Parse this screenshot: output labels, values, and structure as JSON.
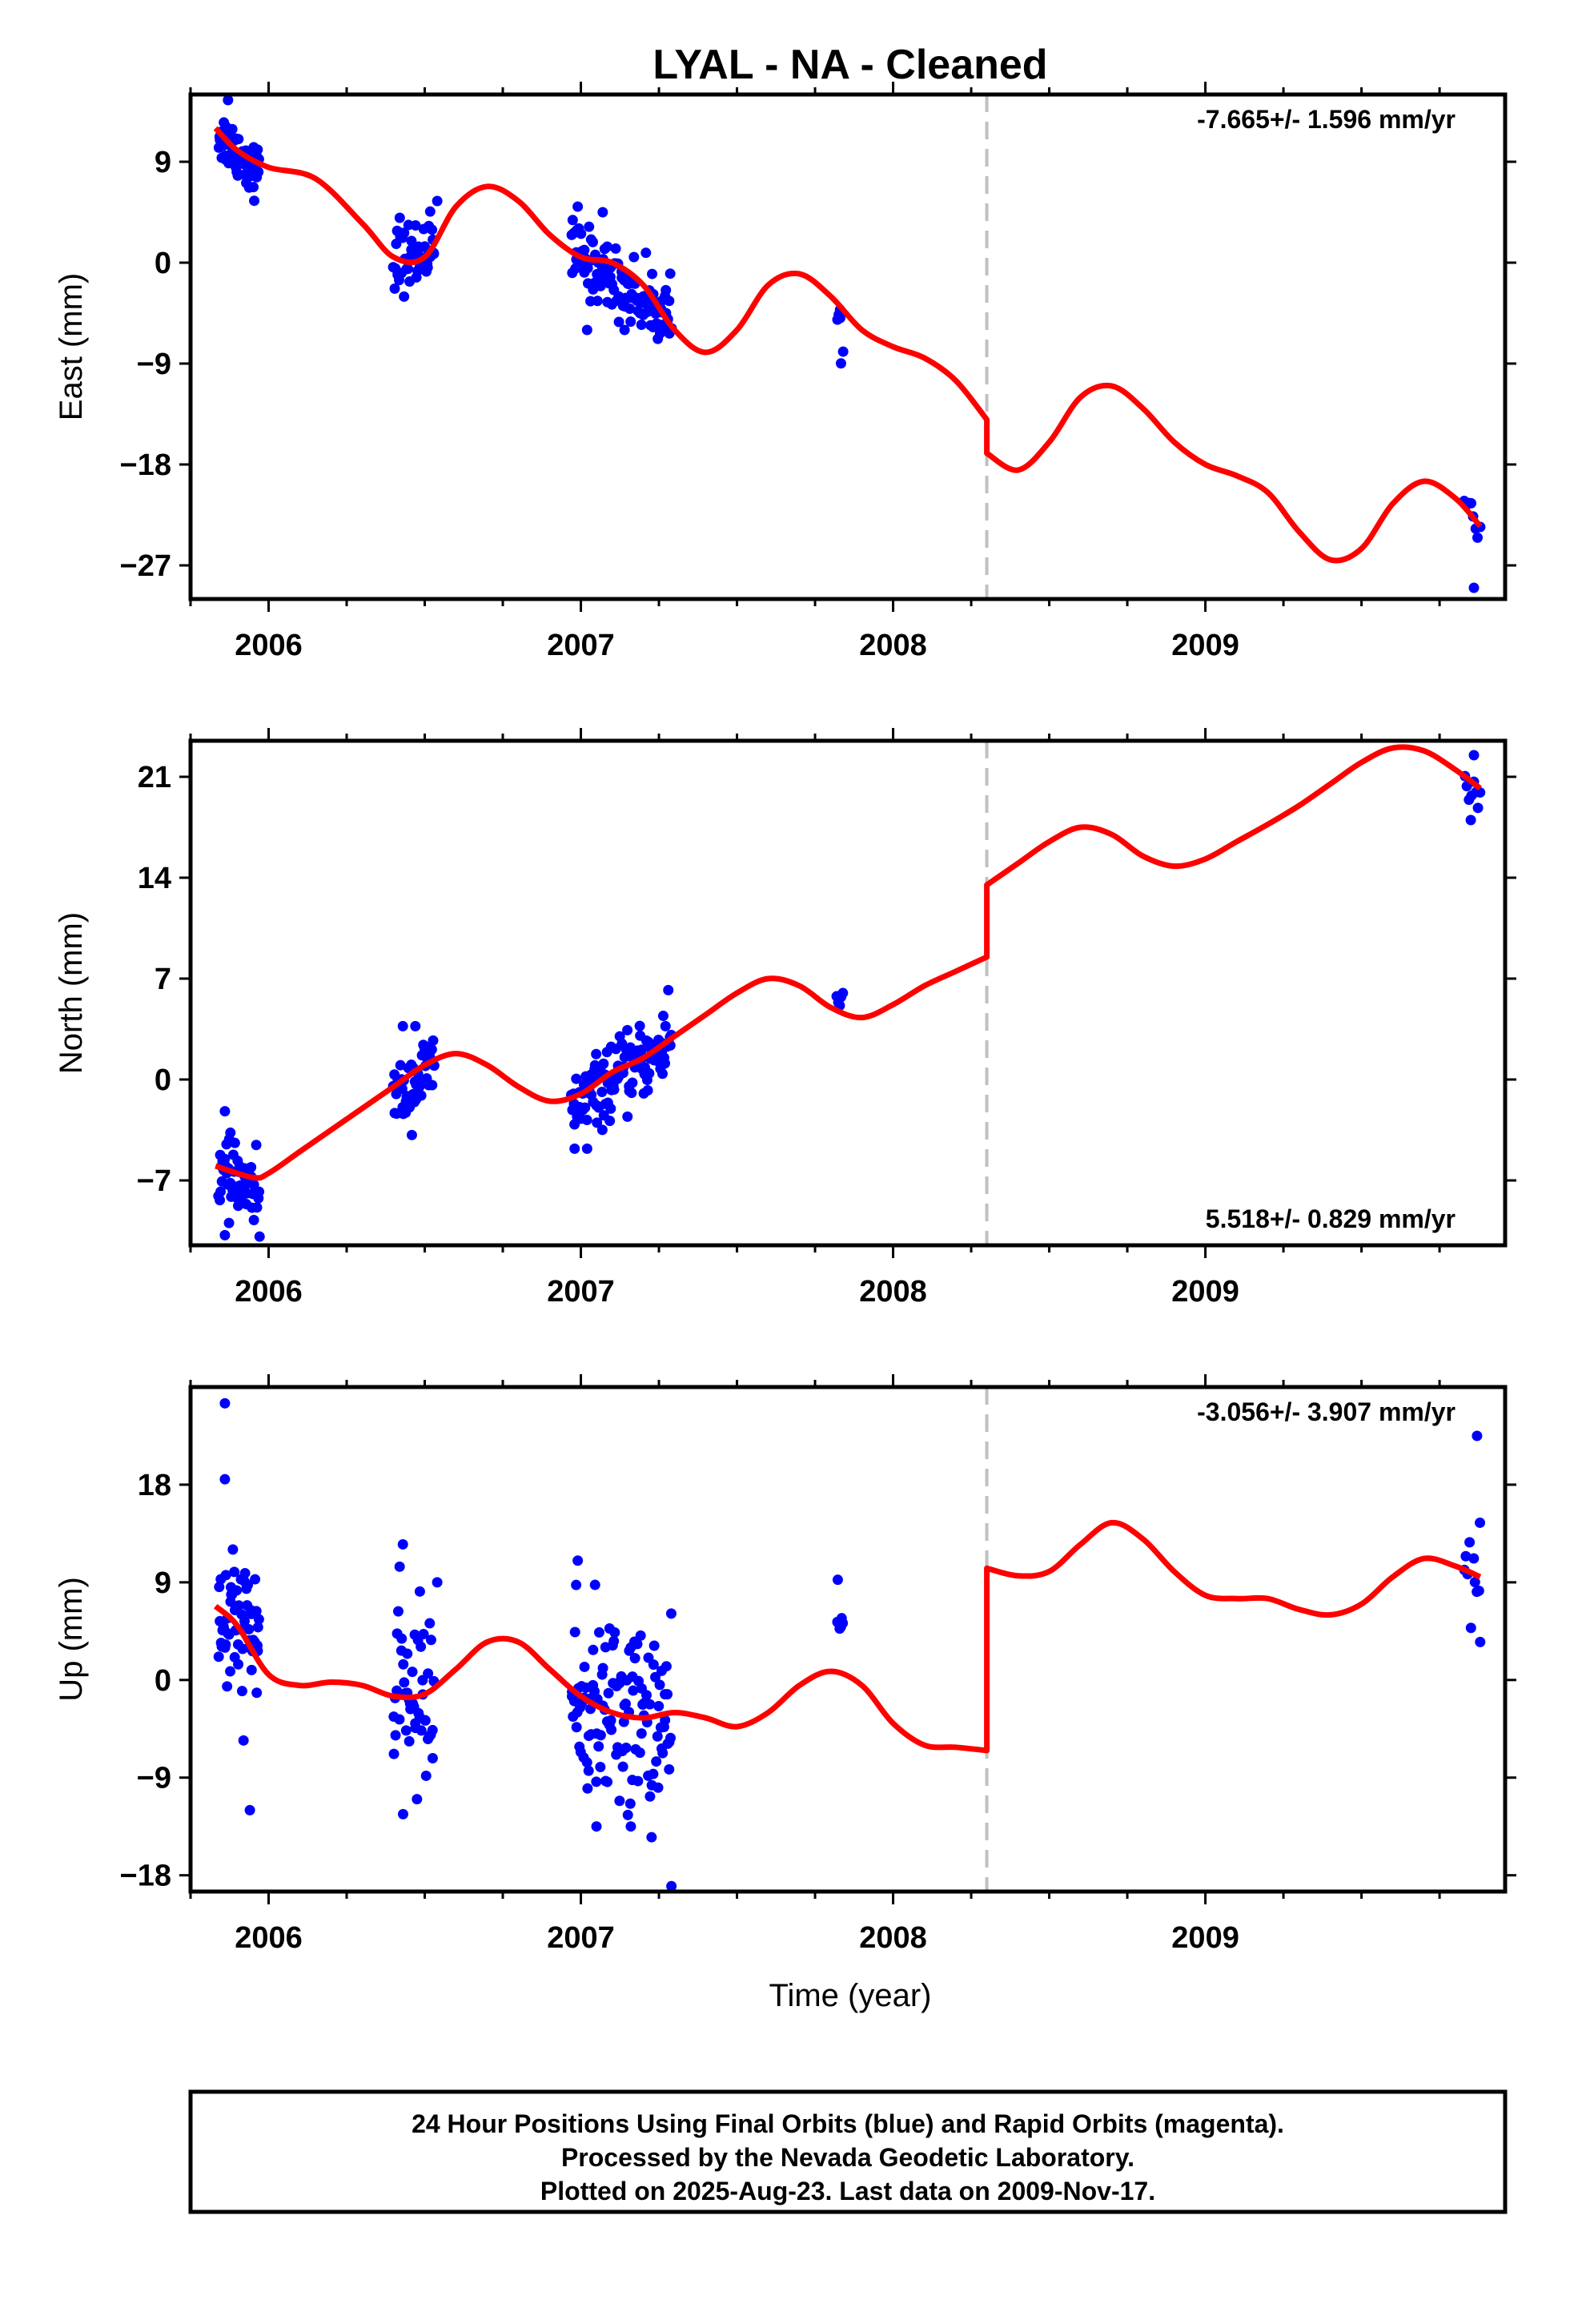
{
  "title": "LYAL  - NA - Cleaned",
  "xlabel": "Time (year)",
  "caption": [
    "24 Hour Positions Using Final Orbits (blue) and Rapid Orbits (magenta).",
    "Processed by the Nevada Geodetic Laboratory.",
    "Plotted on 2025-Aug-23. Last data on 2009-Nov-17."
  ],
  "colors": {
    "data": "#0000ff",
    "model": "#ff0000",
    "break": "#c0c0c0",
    "frame": "#000000"
  },
  "chart_data": [
    {
      "type": "scatter",
      "component": "east",
      "ylabel": "East (mm)",
      "rate_text": "-7.665+/- 1.596 mm/yr",
      "rate_position": "top-right",
      "xlim": [
        2005.75,
        2009.96
      ],
      "ylim": [
        -30,
        15
      ],
      "yticks": [
        9,
        0,
        -9,
        -18,
        -27
      ],
      "ytick_labels": [
        "9",
        "0",
        "−9",
        "−18",
        "−27"
      ],
      "xticks": [
        2006,
        2007,
        2008,
        2009
      ],
      "xtick_labels": [
        "2006",
        "2007",
        "2008",
        "2009"
      ],
      "break_epoch": 2008.3,
      "model": [
        [
          2005.83,
          12
        ],
        [
          2005.9,
          10
        ],
        [
          2006.0,
          8.5
        ],
        [
          2006.15,
          7.5
        ],
        [
          2006.3,
          3.5
        ],
        [
          2006.4,
          0.5
        ],
        [
          2006.5,
          0.5
        ],
        [
          2006.6,
          5
        ],
        [
          2006.7,
          6.8
        ],
        [
          2006.8,
          5.5
        ],
        [
          2006.9,
          2.5
        ],
        [
          2007.0,
          0.5
        ],
        [
          2007.1,
          0
        ],
        [
          2007.2,
          -2
        ],
        [
          2007.3,
          -6
        ],
        [
          2007.4,
          -8
        ],
        [
          2007.5,
          -6
        ],
        [
          2007.6,
          -2
        ],
        [
          2007.7,
          -1
        ],
        [
          2007.8,
          -3
        ],
        [
          2007.9,
          -6
        ],
        [
          2008.0,
          -7.5
        ],
        [
          2008.1,
          -8.5
        ],
        [
          2008.2,
          -10.5
        ],
        [
          2008.3,
          -14
        ],
        [
          2008.3,
          -17
        ],
        [
          2008.4,
          -18.5
        ],
        [
          2008.5,
          -16
        ],
        [
          2008.6,
          -12
        ],
        [
          2008.7,
          -11
        ],
        [
          2008.8,
          -13
        ],
        [
          2008.9,
          -16
        ],
        [
          2009.0,
          -18
        ],
        [
          2009.1,
          -19
        ],
        [
          2009.2,
          -20.5
        ],
        [
          2009.3,
          -24
        ],
        [
          2009.4,
          -26.5
        ],
        [
          2009.5,
          -25.5
        ],
        [
          2009.6,
          -21.5
        ],
        [
          2009.7,
          -19.5
        ],
        [
          2009.8,
          -21
        ],
        [
          2009.88,
          -23.5
        ]
      ],
      "clusters": [
        {
          "x0": 2005.84,
          "x1": 2005.97,
          "y0": 11.5,
          "y1": 8,
          "sd": 1.2,
          "n": 60
        },
        {
          "x0": 2006.4,
          "x1": 2006.53,
          "y0": 0,
          "y1": 1.5,
          "sd": 1.5,
          "n": 50
        },
        {
          "x0": 2006.97,
          "x1": 2007.29,
          "y0": 1,
          "y1": -5,
          "sd": 1.5,
          "n": 120
        },
        {
          "x0": 2007.82,
          "x1": 2007.84,
          "y0": -5.5,
          "y1": -5.5,
          "sd": 1.0,
          "n": 5
        },
        {
          "x0": 2009.83,
          "x1": 2009.88,
          "y0": -22,
          "y1": -23,
          "sd": 1.2,
          "n": 8
        }
      ],
      "outliers": [
        [
          2005.87,
          14.5
        ],
        [
          2006.42,
          4
        ],
        [
          2006.54,
          5.5
        ],
        [
          2006.99,
          5
        ],
        [
          2007.07,
          4.5
        ],
        [
          2007.02,
          -6
        ],
        [
          2007.14,
          -6
        ],
        [
          2007.83,
          -4.2
        ],
        [
          2009.86,
          -29
        ]
      ]
    },
    {
      "type": "scatter",
      "component": "north",
      "ylabel": "North (mm)",
      "rate_text": "5.518+/- 0.829 mm/yr",
      "rate_position": "bottom-right",
      "xlim": [
        2005.75,
        2009.96
      ],
      "ylim": [
        -11.5,
        23.5
      ],
      "yticks": [
        21,
        14,
        7,
        0,
        -7
      ],
      "ytick_labels": [
        "21",
        "14",
        "7",
        "0",
        "−7"
      ],
      "xticks": [
        2006,
        2007,
        2008,
        2009
      ],
      "xtick_labels": [
        "2006",
        "2007",
        "2008",
        "2009"
      ],
      "break_epoch": 2008.3,
      "model": [
        [
          2005.83,
          -6
        ],
        [
          2005.95,
          -6.8
        ],
        [
          2006.0,
          -6.5
        ],
        [
          2006.1,
          -5
        ],
        [
          2006.2,
          -3.5
        ],
        [
          2006.3,
          -2
        ],
        [
          2006.4,
          -0.5
        ],
        [
          2006.5,
          1
        ],
        [
          2006.6,
          1.8
        ],
        [
          2006.7,
          1
        ],
        [
          2006.8,
          -0.5
        ],
        [
          2006.9,
          -1.5
        ],
        [
          2007.0,
          -1
        ],
        [
          2007.1,
          0.5
        ],
        [
          2007.2,
          1.5
        ],
        [
          2007.3,
          3
        ],
        [
          2007.4,
          4.5
        ],
        [
          2007.5,
          6
        ],
        [
          2007.6,
          7
        ],
        [
          2007.7,
          6.5
        ],
        [
          2007.8,
          5
        ],
        [
          2007.9,
          4.3
        ],
        [
          2008.0,
          5.2
        ],
        [
          2008.1,
          6.5
        ],
        [
          2008.2,
          7.5
        ],
        [
          2008.3,
          8.5
        ],
        [
          2008.3,
          13.5
        ],
        [
          2008.4,
          15
        ],
        [
          2008.5,
          16.5
        ],
        [
          2008.6,
          17.5
        ],
        [
          2008.7,
          17
        ],
        [
          2008.8,
          15.5
        ],
        [
          2008.9,
          14.8
        ],
        [
          2009.0,
          15.3
        ],
        [
          2009.1,
          16.5
        ],
        [
          2009.2,
          17.7
        ],
        [
          2009.3,
          19
        ],
        [
          2009.4,
          20.5
        ],
        [
          2009.5,
          22
        ],
        [
          2009.6,
          23
        ],
        [
          2009.7,
          22.8
        ],
        [
          2009.8,
          21.5
        ],
        [
          2009.88,
          20.2
        ]
      ],
      "clusters": [
        {
          "x0": 2005.84,
          "x1": 2005.97,
          "y0": -6.5,
          "y1": -8,
          "sd": 1.2,
          "n": 60
        },
        {
          "x0": 2006.4,
          "x1": 2006.53,
          "y0": -1.5,
          "y1": 1,
          "sd": 1.2,
          "n": 50
        },
        {
          "x0": 2006.97,
          "x1": 2007.29,
          "y0": -2,
          "y1": 2.5,
          "sd": 1.2,
          "n": 120
        },
        {
          "x0": 2007.82,
          "x1": 2007.84,
          "y0": 5.8,
          "y1": 5.8,
          "sd": 0.6,
          "n": 5
        },
        {
          "x0": 2009.83,
          "x1": 2009.88,
          "y0": 20.5,
          "y1": 20,
          "sd": 1.0,
          "n": 8
        }
      ],
      "outliers": [
        [
          2005.86,
          -2.2
        ],
        [
          2005.86,
          -10.8
        ],
        [
          2006.43,
          3.7
        ],
        [
          2006.47,
          3.7
        ],
        [
          2006.98,
          -4.8
        ],
        [
          2007.02,
          -4.8
        ],
        [
          2007.28,
          6.2
        ],
        [
          2009.86,
          22.5
        ],
        [
          2009.85,
          18
        ]
      ]
    },
    {
      "type": "scatter",
      "component": "up",
      "ylabel": "Up (mm)",
      "rate_text": "-3.056+/- 3.907 mm/yr",
      "rate_position": "top-right",
      "xlim": [
        2005.75,
        2009.96
      ],
      "ylim": [
        -19.5,
        27
      ],
      "yticks": [
        18,
        9,
        0,
        -9,
        -18
      ],
      "ytick_labels": [
        "18",
        "9",
        "0",
        "−9",
        "−18"
      ],
      "xticks": [
        2006,
        2007,
        2008,
        2009
      ],
      "xtick_labels": [
        "2006",
        "2007",
        "2008",
        "2009"
      ],
      "break_epoch": 2008.3,
      "model": [
        [
          2005.83,
          6.8
        ],
        [
          2005.9,
          5
        ],
        [
          2006.0,
          0.5
        ],
        [
          2006.1,
          -0.5
        ],
        [
          2006.2,
          -0.2
        ],
        [
          2006.3,
          -0.5
        ],
        [
          2006.4,
          -1.5
        ],
        [
          2006.5,
          -1.3
        ],
        [
          2006.6,
          1
        ],
        [
          2006.7,
          3.5
        ],
        [
          2006.8,
          3.5
        ],
        [
          2006.9,
          1
        ],
        [
          2007.0,
          -1.5
        ],
        [
          2007.1,
          -3
        ],
        [
          2007.2,
          -3.5
        ],
        [
          2007.3,
          -3
        ],
        [
          2007.4,
          -3.5
        ],
        [
          2007.5,
          -4.3
        ],
        [
          2007.6,
          -3
        ],
        [
          2007.7,
          -0.5
        ],
        [
          2007.8,
          0.8
        ],
        [
          2007.9,
          -0.5
        ],
        [
          2008.0,
          -4
        ],
        [
          2008.1,
          -6
        ],
        [
          2008.2,
          -6.2
        ],
        [
          2008.3,
          -6.5
        ],
        [
          2008.3,
          10.3
        ],
        [
          2008.4,
          9.6
        ],
        [
          2008.5,
          10
        ],
        [
          2008.6,
          12.5
        ],
        [
          2008.7,
          14.5
        ],
        [
          2008.8,
          13
        ],
        [
          2008.9,
          10
        ],
        [
          2009.0,
          7.8
        ],
        [
          2009.1,
          7.5
        ],
        [
          2009.2,
          7.5
        ],
        [
          2009.3,
          6.5
        ],
        [
          2009.4,
          6
        ],
        [
          2009.5,
          7
        ],
        [
          2009.6,
          9.5
        ],
        [
          2009.7,
          11.2
        ],
        [
          2009.8,
          10.5
        ],
        [
          2009.88,
          9.5
        ]
      ],
      "clusters": [
        {
          "x0": 2005.84,
          "x1": 2005.97,
          "y0": 5,
          "y1": 4,
          "sd": 3.5,
          "n": 60
        },
        {
          "x0": 2006.4,
          "x1": 2006.53,
          "y0": -2,
          "y1": -1,
          "sd": 4,
          "n": 50
        },
        {
          "x0": 2006.97,
          "x1": 2007.29,
          "y0": -2,
          "y1": -4,
          "sd": 4.5,
          "n": 120
        },
        {
          "x0": 2007.82,
          "x1": 2007.84,
          "y0": 4.5,
          "y1": 4.5,
          "sd": 1.5,
          "n": 6
        },
        {
          "x0": 2009.83,
          "x1": 2009.88,
          "y0": 10,
          "y1": 10,
          "sd": 3,
          "n": 10
        }
      ],
      "outliers": [
        [
          2005.86,
          25.5
        ],
        [
          2005.86,
          18.5
        ],
        [
          2005.94,
          -12
        ],
        [
          2006.43,
          12.5
        ],
        [
          2006.54,
          9
        ],
        [
          2006.99,
          11
        ],
        [
          2007.05,
          -13.5
        ],
        [
          2007.16,
          -13.5
        ],
        [
          2007.29,
          -19
        ],
        [
          2009.87,
          22.5
        ],
        [
          2009.88,
          3.5
        ]
      ]
    }
  ]
}
